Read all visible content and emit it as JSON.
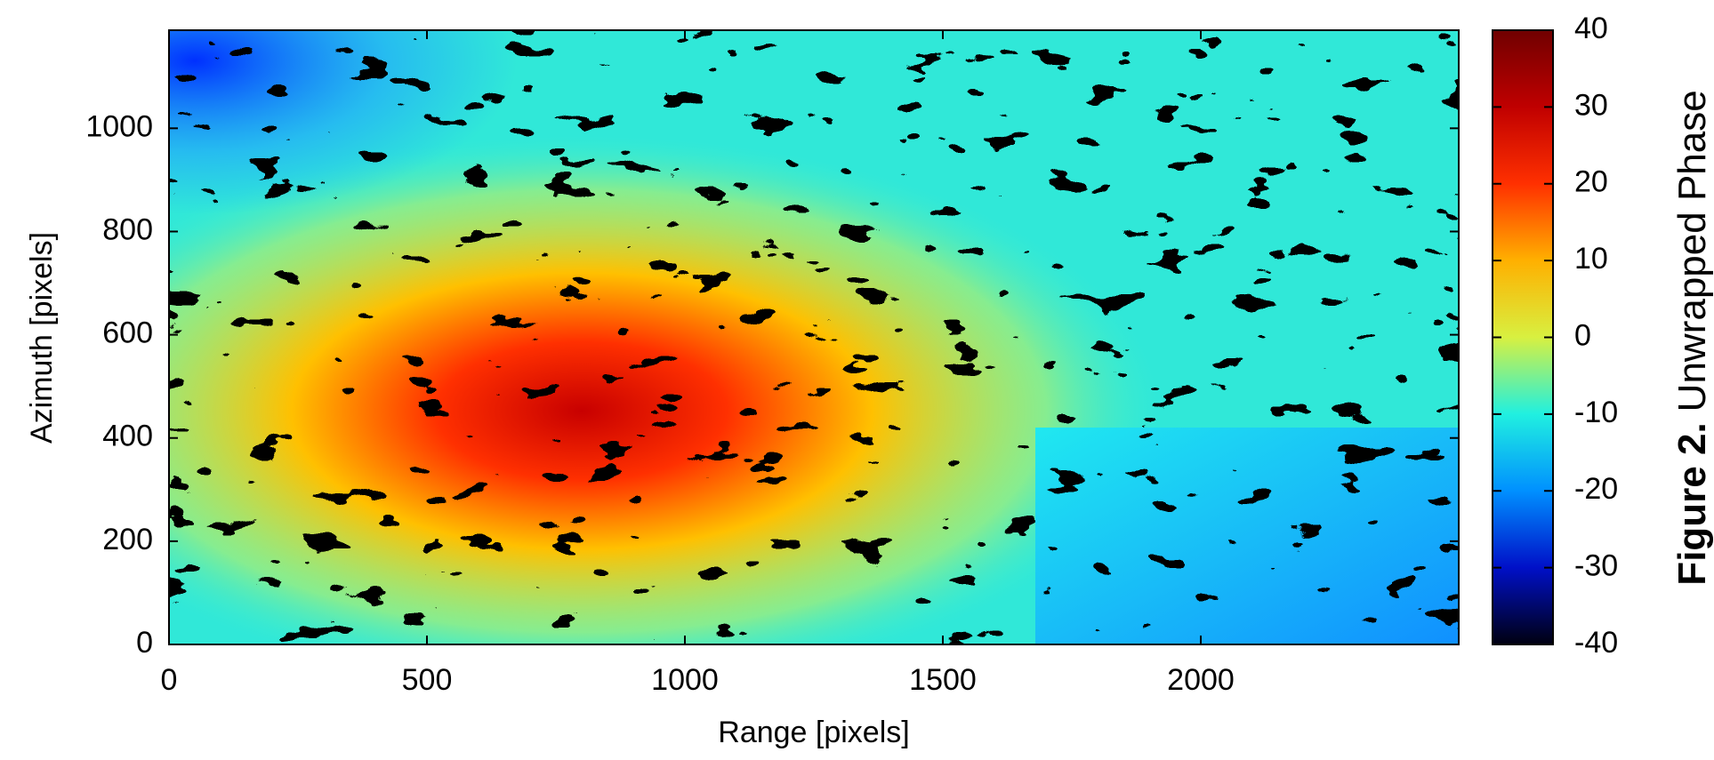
{
  "chart_data": {
    "type": "heatmap",
    "title": "Figure 2.",
    "colorbar_label": "Unwrapped Phase",
    "xlabel": "Range [pixels]",
    "ylabel": "Azimuth [pixels]",
    "xlim": [
      0,
      2500
    ],
    "ylim": [
      0,
      1190
    ],
    "xticks": [
      0,
      500,
      1000,
      1500,
      2000
    ],
    "yticks": [
      0,
      200,
      400,
      600,
      800,
      1000
    ],
    "clim": [
      -40,
      40
    ],
    "cticks": [
      -40,
      -30,
      -20,
      -10,
      0,
      10,
      20,
      30,
      40
    ],
    "colormap": [
      "#000010",
      "#0010c8",
      "#0090ff",
      "#20f0e0",
      "#d8f040",
      "#ffb000",
      "#ff3000",
      "#c00000",
      "#700000"
    ]
  }
}
